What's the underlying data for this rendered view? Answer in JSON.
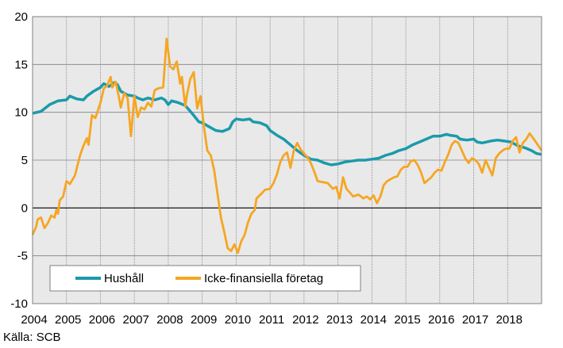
{
  "chart_data": {
    "type": "line",
    "ylim": [
      -10,
      20
    ],
    "yticks": [
      -10,
      -5,
      0,
      5,
      10,
      15,
      20
    ],
    "xlim": [
      2004.0,
      2019.0
    ],
    "xticks": [
      "2004",
      "2005",
      "2006",
      "2007",
      "2008",
      "2009",
      "2010",
      "2011",
      "2012",
      "2013",
      "2014",
      "2015",
      "2016",
      "2017",
      "2018"
    ],
    "grid": true,
    "legend_position": "bottom-left",
    "colors": {
      "hushall": "#1B9AAA",
      "icke": "#F5A623",
      "plot_bg": "#E9E9E9",
      "grid": "#7F7F7F"
    },
    "series": [
      {
        "name": "Hushåll",
        "points": [
          [
            2004.0,
            9.9
          ],
          [
            2004.25,
            10.1
          ],
          [
            2004.5,
            10.8
          ],
          [
            2004.75,
            11.2
          ],
          [
            2005.0,
            11.3
          ],
          [
            2005.1,
            11.7
          ],
          [
            2005.3,
            11.4
          ],
          [
            2005.5,
            11.3
          ],
          [
            2005.6,
            11.7
          ],
          [
            2005.8,
            12.2
          ],
          [
            2005.9,
            12.4
          ],
          [
            2006.0,
            12.6
          ],
          [
            2006.1,
            13.0
          ],
          [
            2006.25,
            12.7
          ],
          [
            2006.4,
            13.1
          ],
          [
            2006.5,
            12.9
          ],
          [
            2006.6,
            12.2
          ],
          [
            2006.8,
            11.8
          ],
          [
            2007.0,
            11.7
          ],
          [
            2007.1,
            11.5
          ],
          [
            2007.25,
            11.3
          ],
          [
            2007.4,
            11.5
          ],
          [
            2007.5,
            11.4
          ],
          [
            2007.6,
            11.3
          ],
          [
            2007.8,
            11.5
          ],
          [
            2007.9,
            11.3
          ],
          [
            2008.0,
            10.8
          ],
          [
            2008.1,
            11.2
          ],
          [
            2008.3,
            11.0
          ],
          [
            2008.5,
            10.7
          ],
          [
            2008.7,
            9.9
          ],
          [
            2008.9,
            9.0
          ],
          [
            2009.0,
            8.9
          ],
          [
            2009.2,
            8.5
          ],
          [
            2009.4,
            8.1
          ],
          [
            2009.6,
            8.0
          ],
          [
            2009.8,
            8.3
          ],
          [
            2009.9,
            9.0
          ],
          [
            2010.0,
            9.3
          ],
          [
            2010.2,
            9.2
          ],
          [
            2010.4,
            9.3
          ],
          [
            2010.5,
            9.0
          ],
          [
            2010.7,
            8.9
          ],
          [
            2010.9,
            8.6
          ],
          [
            2011.0,
            8.1
          ],
          [
            2011.2,
            7.6
          ],
          [
            2011.4,
            7.2
          ],
          [
            2011.6,
            6.6
          ],
          [
            2011.8,
            6.0
          ],
          [
            2012.0,
            5.5
          ],
          [
            2012.2,
            5.1
          ],
          [
            2012.4,
            5.0
          ],
          [
            2012.6,
            4.7
          ],
          [
            2012.8,
            4.5
          ],
          [
            2013.0,
            4.6
          ],
          [
            2013.2,
            4.8
          ],
          [
            2013.4,
            4.9
          ],
          [
            2013.6,
            5.0
          ],
          [
            2013.8,
            5.0
          ],
          [
            2014.0,
            5.1
          ],
          [
            2014.2,
            5.2
          ],
          [
            2014.4,
            5.5
          ],
          [
            2014.6,
            5.7
          ],
          [
            2014.8,
            6.0
          ],
          [
            2015.0,
            6.2
          ],
          [
            2015.2,
            6.6
          ],
          [
            2015.4,
            6.9
          ],
          [
            2015.6,
            7.2
          ],
          [
            2015.8,
            7.5
          ],
          [
            2016.0,
            7.5
          ],
          [
            2016.2,
            7.7
          ],
          [
            2016.3,
            7.6
          ],
          [
            2016.5,
            7.5
          ],
          [
            2016.6,
            7.2
          ],
          [
            2016.8,
            7.1
          ],
          [
            2017.0,
            7.2
          ],
          [
            2017.1,
            6.9
          ],
          [
            2017.25,
            6.8
          ],
          [
            2017.5,
            7.0
          ],
          [
            2017.7,
            7.1
          ],
          [
            2017.9,
            7.0
          ],
          [
            2018.1,
            6.9
          ],
          [
            2018.3,
            6.5
          ],
          [
            2018.5,
            6.3
          ],
          [
            2018.7,
            6.0
          ],
          [
            2018.85,
            5.7
          ],
          [
            2019.0,
            5.6
          ]
        ]
      },
      {
        "name": "Icke-finansiella företag",
        "points": [
          [
            2004.0,
            -2.8
          ],
          [
            2004.1,
            -2.0
          ],
          [
            2004.15,
            -1.2
          ],
          [
            2004.25,
            -1.0
          ],
          [
            2004.35,
            -2.1
          ],
          [
            2004.45,
            -1.6
          ],
          [
            2004.55,
            -0.8
          ],
          [
            2004.65,
            -1.0
          ],
          [
            2004.7,
            -0.2
          ],
          [
            2004.75,
            -0.6
          ],
          [
            2004.8,
            0.8
          ],
          [
            2004.9,
            1.2
          ],
          [
            2005.0,
            2.8
          ],
          [
            2005.1,
            2.5
          ],
          [
            2005.25,
            3.4
          ],
          [
            2005.4,
            5.5
          ],
          [
            2005.5,
            6.5
          ],
          [
            2005.6,
            7.3
          ],
          [
            2005.65,
            6.6
          ],
          [
            2005.75,
            9.7
          ],
          [
            2005.85,
            9.4
          ],
          [
            2006.0,
            11.0
          ],
          [
            2006.1,
            12.5
          ],
          [
            2006.2,
            12.8
          ],
          [
            2006.3,
            13.7
          ],
          [
            2006.35,
            12.6
          ],
          [
            2006.45,
            13.2
          ],
          [
            2006.55,
            11.5
          ],
          [
            2006.6,
            10.5
          ],
          [
            2006.7,
            12.0
          ],
          [
            2006.8,
            11.5
          ],
          [
            2006.9,
            7.5
          ],
          [
            2007.0,
            11.7
          ],
          [
            2007.1,
            9.5
          ],
          [
            2007.2,
            10.5
          ],
          [
            2007.3,
            10.3
          ],
          [
            2007.4,
            11.0
          ],
          [
            2007.5,
            10.6
          ],
          [
            2007.6,
            12.3
          ],
          [
            2007.7,
            12.5
          ],
          [
            2007.85,
            12.6
          ],
          [
            2007.95,
            17.7
          ],
          [
            2008.05,
            14.8
          ],
          [
            2008.15,
            14.5
          ],
          [
            2008.25,
            15.3
          ],
          [
            2008.35,
            13.0
          ],
          [
            2008.4,
            13.7
          ],
          [
            2008.5,
            10.6
          ],
          [
            2008.55,
            11.8
          ],
          [
            2008.65,
            13.5
          ],
          [
            2008.75,
            14.2
          ],
          [
            2008.85,
            10.4
          ],
          [
            2008.95,
            11.7
          ],
          [
            2009.05,
            8.5
          ],
          [
            2009.15,
            6.0
          ],
          [
            2009.25,
            5.5
          ],
          [
            2009.35,
            4.0
          ],
          [
            2009.45,
            1.5
          ],
          [
            2009.55,
            -1.0
          ],
          [
            2009.65,
            -2.5
          ],
          [
            2009.75,
            -4.2
          ],
          [
            2009.85,
            -4.5
          ],
          [
            2009.95,
            -3.8
          ],
          [
            2010.05,
            -4.7
          ],
          [
            2010.15,
            -3.5
          ],
          [
            2010.25,
            -2.8
          ],
          [
            2010.35,
            -1.5
          ],
          [
            2010.45,
            -0.6
          ],
          [
            2010.55,
            -0.2
          ],
          [
            2010.6,
            1.0
          ],
          [
            2010.75,
            1.5
          ],
          [
            2010.85,
            1.9
          ],
          [
            2011.0,
            2.0
          ],
          [
            2011.1,
            2.6
          ],
          [
            2011.2,
            3.5
          ],
          [
            2011.3,
            4.8
          ],
          [
            2011.4,
            5.5
          ],
          [
            2011.5,
            5.8
          ],
          [
            2011.6,
            4.2
          ],
          [
            2011.7,
            6.0
          ],
          [
            2011.8,
            6.8
          ],
          [
            2011.9,
            6.1
          ],
          [
            2012.0,
            5.7
          ],
          [
            2012.1,
            5.3
          ],
          [
            2012.2,
            4.7
          ],
          [
            2012.3,
            3.8
          ],
          [
            2012.4,
            2.8
          ],
          [
            2012.55,
            2.7
          ],
          [
            2012.7,
            2.6
          ],
          [
            2012.85,
            2.0
          ],
          [
            2012.95,
            2.2
          ],
          [
            2013.05,
            1.0
          ],
          [
            2013.15,
            3.2
          ],
          [
            2013.25,
            2.0
          ],
          [
            2013.35,
            1.6
          ],
          [
            2013.45,
            1.2
          ],
          [
            2013.6,
            1.4
          ],
          [
            2013.75,
            1.0
          ],
          [
            2013.85,
            1.2
          ],
          [
            2013.95,
            0.9
          ],
          [
            2014.05,
            1.3
          ],
          [
            2014.15,
            0.5
          ],
          [
            2014.25,
            1.2
          ],
          [
            2014.35,
            2.4
          ],
          [
            2014.45,
            2.8
          ],
          [
            2014.55,
            3.0
          ],
          [
            2014.65,
            3.2
          ],
          [
            2014.75,
            3.3
          ],
          [
            2014.85,
            4.0
          ],
          [
            2014.95,
            4.3
          ],
          [
            2015.05,
            4.3
          ],
          [
            2015.15,
            4.9
          ],
          [
            2015.25,
            5.0
          ],
          [
            2015.35,
            4.5
          ],
          [
            2015.45,
            3.7
          ],
          [
            2015.55,
            2.6
          ],
          [
            2015.65,
            2.9
          ],
          [
            2015.75,
            3.2
          ],
          [
            2015.85,
            3.7
          ],
          [
            2015.95,
            4.0
          ],
          [
            2016.05,
            3.9
          ],
          [
            2016.15,
            4.8
          ],
          [
            2016.25,
            5.6
          ],
          [
            2016.35,
            6.6
          ],
          [
            2016.45,
            7.0
          ],
          [
            2016.55,
            6.8
          ],
          [
            2016.65,
            6.0
          ],
          [
            2016.75,
            5.2
          ],
          [
            2016.85,
            4.7
          ],
          [
            2016.95,
            5.2
          ],
          [
            2017.05,
            5.0
          ],
          [
            2017.15,
            4.6
          ],
          [
            2017.25,
            3.7
          ],
          [
            2017.35,
            5.0
          ],
          [
            2017.45,
            4.2
          ],
          [
            2017.55,
            3.4
          ],
          [
            2017.65,
            5.2
          ],
          [
            2017.75,
            5.7
          ],
          [
            2017.85,
            6.0
          ],
          [
            2017.95,
            6.2
          ],
          [
            2018.05,
            6.2
          ],
          [
            2018.15,
            7.0
          ],
          [
            2018.25,
            7.4
          ],
          [
            2018.35,
            5.8
          ],
          [
            2018.45,
            6.8
          ],
          [
            2018.55,
            7.2
          ],
          [
            2018.65,
            7.8
          ],
          [
            2018.75,
            7.3
          ],
          [
            2018.85,
            6.8
          ],
          [
            2019.0,
            6.0
          ]
        ]
      }
    ]
  },
  "source_label": "Källa: SCB"
}
